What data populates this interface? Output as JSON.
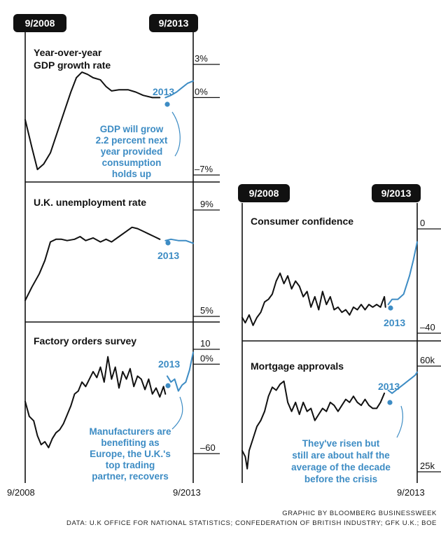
{
  "tags": {
    "left_start": "9/2008",
    "left_end": "9/2013",
    "right_start": "9/2008",
    "right_end": "9/2013"
  },
  "bottom_labels": {
    "left_start": "9/2008",
    "left_end": "9/2013",
    "right_end": "9/2013"
  },
  "credit": {
    "line1": "GRAPHIC BY BLOOMBERG BUSINESSWEEK",
    "line2": "DATA: U.K OFFICE FOR NATIONAL STATISTICS; CONFEDERATION OF BRITISH INDUSTRY; GFK U.K.; BOE"
  },
  "colors": {
    "actual": "#111111",
    "forecast": "#3d8cc4",
    "tag_bg": "#111111"
  },
  "chart_data": [
    {
      "type": "line",
      "title": "Year-over-year\nGDP growth rate",
      "y_ticks": [
        "3%",
        "0%",
        "–7%"
      ],
      "ylim": [
        -7,
        3
      ],
      "y_tick_values": [
        3,
        0,
        -7
      ],
      "series": [
        {
          "values": [
            [
              2008.67,
              -2.0
            ],
            [
              2008.85,
              -4.5
            ],
            [
              2009.0,
              -6.5
            ],
            [
              2009.17,
              -6.0
            ],
            [
              2009.35,
              -5.0
            ],
            [
              2009.55,
              -3.0
            ],
            [
              2009.75,
              -1.0
            ],
            [
              2009.9,
              0.5
            ],
            [
              2010.05,
              1.8
            ],
            [
              2010.2,
              2.3
            ],
            [
              2010.35,
              2.1
            ],
            [
              2010.5,
              1.8
            ],
            [
              2010.7,
              1.6
            ],
            [
              2010.85,
              1.0
            ],
            [
              2011.0,
              0.6
            ],
            [
              2011.2,
              0.7
            ],
            [
              2011.45,
              0.7
            ],
            [
              2011.65,
              0.5
            ],
            [
              2011.85,
              0.2
            ],
            [
              2012.1,
              0.0
            ],
            [
              2012.3,
              0.0
            ]
          ]
        },
        {
          "values": [
            [
              2012.45,
              0.0
            ],
            [
              2012.6,
              0.2
            ],
            [
              2012.75,
              0.5
            ],
            [
              2012.9,
              0.9
            ],
            [
              2013.05,
              1.3
            ],
            [
              2013.2,
              1.5
            ]
          ]
        }
      ],
      "annotation_year": "2013",
      "annotation": [
        "GDP will grow",
        "2.2 percent next",
        "year provided",
        "consumption",
        "holds up"
      ]
    },
    {
      "type": "line",
      "title": "U.K. unemployment rate",
      "y_ticks": [
        "9%",
        "5%"
      ],
      "ylim": [
        5,
        9
      ],
      "y_tick_values": [
        9,
        5
      ],
      "series": [
        {
          "values": [
            [
              2008.67,
              5.6
            ],
            [
              2008.85,
              6.1
            ],
            [
              2009.05,
              6.6
            ],
            [
              2009.2,
              7.1
            ],
            [
              2009.35,
              7.8
            ],
            [
              2009.5,
              7.9
            ],
            [
              2009.65,
              7.9
            ],
            [
              2009.8,
              7.85
            ],
            [
              2010.0,
              7.9
            ],
            [
              2010.15,
              8.0
            ],
            [
              2010.3,
              7.85
            ],
            [
              2010.5,
              7.95
            ],
            [
              2010.7,
              7.8
            ],
            [
              2010.85,
              7.9
            ],
            [
              2011.0,
              7.8
            ],
            [
              2011.2,
              8.0
            ],
            [
              2011.4,
              8.2
            ],
            [
              2011.55,
              8.35
            ],
            [
              2011.7,
              8.3
            ],
            [
              2011.85,
              8.2
            ],
            [
              2012.0,
              8.1
            ],
            [
              2012.15,
              8.0
            ],
            [
              2012.3,
              7.9
            ]
          ]
        },
        {
          "values": [
            [
              2012.45,
              7.85
            ],
            [
              2012.6,
              7.9
            ],
            [
              2012.8,
              7.85
            ],
            [
              2013.0,
              7.85
            ],
            [
              2013.2,
              7.75
            ]
          ]
        }
      ],
      "annotation_year": "2013"
    },
    {
      "type": "line",
      "title": "Factory orders survey",
      "y_ticks": [
        "10",
        "0%",
        "–60"
      ],
      "ylim": [
        -60,
        10
      ],
      "y_tick_values": [
        10,
        0,
        -60
      ],
      "series": [
        {
          "values": [
            [
              2008.67,
              -25
            ],
            [
              2008.78,
              -35
            ],
            [
              2008.9,
              -38
            ],
            [
              2009.0,
              -48
            ],
            [
              2009.1,
              -54
            ],
            [
              2009.2,
              -52
            ],
            [
              2009.3,
              -56
            ],
            [
              2009.4,
              -50
            ],
            [
              2009.5,
              -46
            ],
            [
              2009.6,
              -44
            ],
            [
              2009.7,
              -40
            ],
            [
              2009.8,
              -34
            ],
            [
              2009.9,
              -28
            ],
            [
              2010.0,
              -20
            ],
            [
              2010.1,
              -18
            ],
            [
              2010.2,
              -12
            ],
            [
              2010.3,
              -15
            ],
            [
              2010.4,
              -10
            ],
            [
              2010.5,
              -5
            ],
            [
              2010.6,
              -9
            ],
            [
              2010.7,
              -2
            ],
            [
              2010.8,
              -12
            ],
            [
              2010.9,
              5
            ],
            [
              2011.0,
              -10
            ],
            [
              2011.1,
              -2
            ],
            [
              2011.2,
              -16
            ],
            [
              2011.3,
              -5
            ],
            [
              2011.4,
              -10
            ],
            [
              2011.5,
              -3
            ],
            [
              2011.6,
              -15
            ],
            [
              2011.7,
              -8
            ],
            [
              2011.8,
              -10
            ],
            [
              2011.9,
              -17
            ],
            [
              2012.0,
              -10
            ],
            [
              2012.1,
              -20
            ],
            [
              2012.2,
              -16
            ],
            [
              2012.3,
              -22
            ],
            [
              2012.4,
              -15
            ],
            [
              2012.45,
              -20
            ]
          ]
        },
        {
          "values": [
            [
              2012.5,
              -8
            ],
            [
              2012.6,
              -12
            ],
            [
              2012.7,
              -10
            ],
            [
              2012.8,
              -18
            ],
            [
              2012.9,
              -14
            ],
            [
              2013.0,
              -12
            ],
            [
              2013.1,
              -4
            ],
            [
              2013.2,
              8
            ]
          ]
        }
      ],
      "annotation_year": "2013",
      "annotation": [
        "Manufacturers are",
        "benefiting as",
        "Europe, the U.K.'s",
        "top trading",
        "partner, recovers"
      ]
    },
    {
      "type": "line",
      "title": "Consumer confidence",
      "y_ticks": [
        "0",
        "–40"
      ],
      "ylim": [
        -40,
        0
      ],
      "y_tick_values": [
        0,
        -40
      ],
      "series": [
        {
          "values": [
            [
              2008.67,
              -34
            ],
            [
              2008.75,
              -36
            ],
            [
              2008.85,
              -33
            ],
            [
              2008.95,
              -37
            ],
            [
              2009.05,
              -34
            ],
            [
              2009.15,
              -32
            ],
            [
              2009.25,
              -28
            ],
            [
              2009.35,
              -27
            ],
            [
              2009.45,
              -25
            ],
            [
              2009.55,
              -20
            ],
            [
              2009.65,
              -17
            ],
            [
              2009.75,
              -21
            ],
            [
              2009.85,
              -18
            ],
            [
              2009.95,
              -23
            ],
            [
              2010.05,
              -20
            ],
            [
              2010.15,
              -22
            ],
            [
              2010.25,
              -26
            ],
            [
              2010.35,
              -24
            ],
            [
              2010.45,
              -30
            ],
            [
              2010.55,
              -26
            ],
            [
              2010.65,
              -31
            ],
            [
              2010.75,
              -24
            ],
            [
              2010.85,
              -29
            ],
            [
              2010.95,
              -26
            ],
            [
              2011.05,
              -31
            ],
            [
              2011.15,
              -30
            ],
            [
              2011.25,
              -32
            ],
            [
              2011.35,
              -31
            ],
            [
              2011.45,
              -33
            ],
            [
              2011.55,
              -30
            ],
            [
              2011.65,
              -31
            ],
            [
              2011.75,
              -29
            ],
            [
              2011.85,
              -31
            ],
            [
              2011.95,
              -29
            ],
            [
              2012.05,
              -30
            ],
            [
              2012.15,
              -29
            ],
            [
              2012.25,
              -30
            ],
            [
              2012.3,
              -28
            ],
            [
              2012.35,
              -26
            ],
            [
              2012.38,
              -30
            ]
          ]
        },
        {
          "values": [
            [
              2012.45,
              -29
            ],
            [
              2012.55,
              -27
            ],
            [
              2012.7,
              -27
            ],
            [
              2012.85,
              -25
            ],
            [
              2013.0,
              -18
            ],
            [
              2013.1,
              -12
            ],
            [
              2013.2,
              -5
            ]
          ]
        }
      ],
      "annotation_year": "2013"
    },
    {
      "type": "line",
      "title": "Mortgage approvals",
      "y_ticks": [
        "60k",
        "25k"
      ],
      "ylim": [
        25,
        60
      ],
      "y_tick_values": [
        60,
        25
      ],
      "series": [
        {
          "values": [
            [
              2008.67,
              32
            ],
            [
              2008.75,
              30
            ],
            [
              2008.8,
              26
            ],
            [
              2008.85,
              32
            ],
            [
              2008.95,
              36
            ],
            [
              2009.05,
              40
            ],
            [
              2009.15,
              42
            ],
            [
              2009.25,
              45
            ],
            [
              2009.35,
              50
            ],
            [
              2009.45,
              53
            ],
            [
              2009.55,
              52
            ],
            [
              2009.65,
              54
            ],
            [
              2009.75,
              55
            ],
            [
              2009.85,
              48
            ],
            [
              2009.95,
              45
            ],
            [
              2010.05,
              48
            ],
            [
              2010.15,
              44
            ],
            [
              2010.25,
              48
            ],
            [
              2010.35,
              45
            ],
            [
              2010.45,
              46
            ],
            [
              2010.55,
              42
            ],
            [
              2010.65,
              44
            ],
            [
              2010.75,
              46
            ],
            [
              2010.85,
              45
            ],
            [
              2010.95,
              48
            ],
            [
              2011.05,
              47
            ],
            [
              2011.15,
              45
            ],
            [
              2011.25,
              47
            ],
            [
              2011.35,
              49
            ],
            [
              2011.45,
              48
            ],
            [
              2011.55,
              50
            ],
            [
              2011.65,
              48
            ],
            [
              2011.75,
              47
            ],
            [
              2011.85,
              49
            ],
            [
              2011.95,
              47
            ],
            [
              2012.05,
              46
            ],
            [
              2012.15,
              46
            ],
            [
              2012.25,
              48
            ],
            [
              2012.35,
              51
            ]
          ]
        },
        {
          "values": [
            [
              2012.45,
              52
            ],
            [
              2012.55,
              51
            ],
            [
              2012.65,
              52
            ],
            [
              2012.75,
              53
            ],
            [
              2012.85,
              54
            ],
            [
              2012.95,
              55
            ],
            [
              2013.05,
              56
            ],
            [
              2013.15,
              57
            ],
            [
              2013.2,
              58
            ]
          ]
        }
      ],
      "annotation_year": "2013",
      "annotation": [
        "They've risen but",
        "still are about half the",
        "average of the decade",
        "before the crisis"
      ]
    }
  ]
}
